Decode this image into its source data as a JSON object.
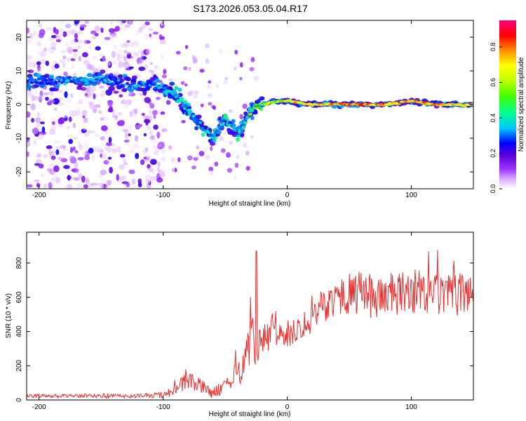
{
  "title": "S173.2026.053.05.04.R17",
  "chart_data": [
    {
      "type": "heatmap",
      "title": "S173.2026.053.05.04.R17",
      "xlabel": "Height of straight line (km)",
      "ylabel": "Frequency (Hz)",
      "xlim": [
        -210,
        150
      ],
      "ylim": [
        -25,
        25
      ],
      "xticks": [
        -200,
        -100,
        0,
        100
      ],
      "yticks": [
        -20,
        -10,
        0,
        10,
        20
      ],
      "colorbar": {
        "label": "Normalized spectral amplitude",
        "range": [
          0,
          0.95
        ],
        "ticks": [
          0.0,
          0.2,
          0.4,
          0.6,
          0.8
        ],
        "tick_labels": [
          "0.0",
          "0.2",
          "0.4",
          "0.6",
          "0.8"
        ],
        "colors": [
          "#ffffff",
          "#e0b8ff",
          "#9b30ff",
          "#5a00d8",
          "#0000ff",
          "#00c8ff",
          "#00ff90",
          "#40ff00",
          "#c8ff00",
          "#ffff00",
          "#ff9000",
          "#ff0000",
          "#ff0080"
        ]
      },
      "ridge": {
        "x": [
          -210,
          -190,
          -170,
          -150,
          -130,
          -110,
          -100,
          -90,
          -80,
          -70,
          -60,
          -50,
          -40,
          -30,
          -20,
          -10,
          0,
          20,
          50,
          80,
          100,
          120,
          150
        ],
        "y": [
          7,
          7,
          7,
          8,
          6,
          6,
          5,
          3,
          -2,
          -6,
          -10,
          -4,
          -9,
          -2,
          0,
          1,
          1,
          0,
          0,
          0,
          1,
          0,
          0
        ],
        "amplitude": [
          0.35,
          0.4,
          0.45,
          0.45,
          0.4,
          0.4,
          0.45,
          0.5,
          0.45,
          0.45,
          0.45,
          0.5,
          0.45,
          0.55,
          0.65,
          0.7,
          0.8,
          0.8,
          0.85,
          0.85,
          0.85,
          0.8,
          0.8
        ]
      }
    },
    {
      "type": "line",
      "xlabel": "Height of straight line (km)",
      "ylabel": "SNR (10 * v/v)",
      "xlim": [
        -210,
        150
      ],
      "ylim": [
        0,
        980
      ],
      "xticks": [
        -200,
        -100,
        0,
        100
      ],
      "yticks": [
        0,
        200,
        400,
        600,
        800
      ],
      "series": [
        {
          "name": "SNR",
          "color": "#ee2a2a",
          "x": [
            -210,
            -190,
            -170,
            -150,
            -130,
            -110,
            -100,
            -90,
            -80,
            -70,
            -60,
            -50,
            -40,
            -35,
            -30,
            -28,
            -25,
            -22,
            -20,
            -15,
            -10,
            -5,
            0,
            10,
            20,
            30,
            40,
            50,
            60,
            70,
            80,
            90,
            100,
            110,
            120,
            130,
            140,
            150
          ],
          "y": [
            20,
            22,
            22,
            25,
            22,
            24,
            30,
            60,
            110,
            80,
            40,
            80,
            150,
            220,
            320,
            300,
            300,
            380,
            320,
            380,
            400,
            380,
            380,
            430,
            480,
            560,
            600,
            620,
            620,
            600,
            620,
            610,
            640,
            610,
            620,
            600,
            620,
            620
          ],
          "noise_amplitude": [
            12,
            12,
            12,
            14,
            12,
            14,
            20,
            35,
            60,
            45,
            30,
            45,
            80,
            100,
            120,
            180,
            140,
            110,
            110,
            100,
            90,
            80,
            80,
            80,
            90,
            100,
            110,
            120,
            130,
            130,
            130,
            130,
            130,
            130,
            135,
            130,
            120,
            120
          ]
        }
      ]
    }
  ]
}
